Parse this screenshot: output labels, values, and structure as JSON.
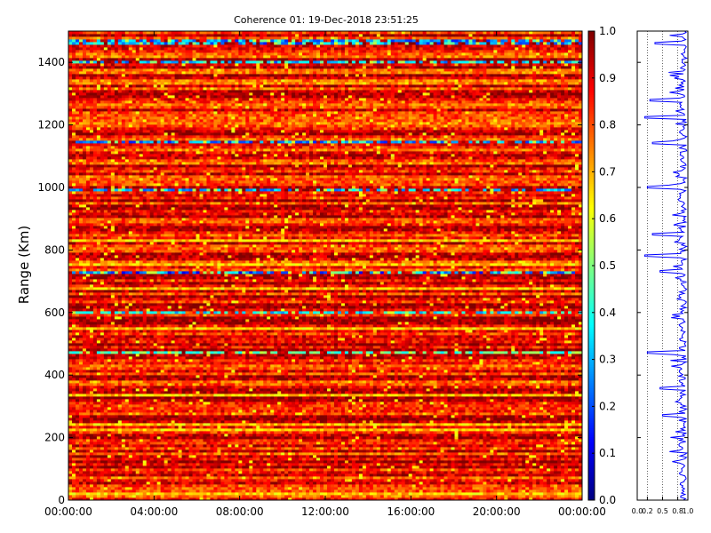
{
  "chart_data": [
    {
      "type": "heatmap",
      "title": "Coherence 01: 19-Dec-2018 23:51:25",
      "xlabel": "",
      "ylabel": "Range (Km)",
      "x_ticks": [
        "00:00:00",
        "04:00:00",
        "08:00:00",
        "12:00:00",
        "16:00:00",
        "20:00:00",
        "00:00:00"
      ],
      "y_ticks": [
        0,
        200,
        400,
        600,
        800,
        1000,
        1200,
        1400
      ],
      "ylim": [
        0,
        1500
      ],
      "colorbar": {
        "colormap": "jet",
        "range": [
          0.0,
          1.0
        ],
        "ticks": [
          "0.0",
          "0.1",
          "0.2",
          "0.3",
          "0.4",
          "0.5",
          "0.6",
          "0.7",
          "0.8",
          "0.9",
          "1.0"
        ]
      },
      "dominant_value_range": [
        0.75,
        0.98
      ],
      "low_coherence_bands_km": [
        {
          "range_km": 1465,
          "value": 0.15
        },
        {
          "range_km": 1400,
          "value": 0.2
        },
        {
          "range_km": 1145,
          "value": 0.15
        },
        {
          "range_km": 993,
          "value": 0.2
        },
        {
          "range_km": 727,
          "value": 0.1
        },
        {
          "range_km": 600,
          "value": 0.25
        },
        {
          "range_km": 475,
          "value": 0.35
        }
      ]
    },
    {
      "type": "line",
      "title": "",
      "xlim": [
        0.0,
        1.0
      ],
      "x_ticks": [
        "0.0",
        "0.2",
        "0.5",
        "0.8",
        "1.0"
      ],
      "ylim": [
        0,
        1500
      ],
      "grid": "dotted vertical",
      "series_color": "#0000ff",
      "dip_profile": [
        {
          "range_km": 1460,
          "value": 0.35
        },
        {
          "range_km": 1280,
          "value": 0.25
        },
        {
          "range_km": 1225,
          "value": 0.15
        },
        {
          "range_km": 1140,
          "value": 0.3
        },
        {
          "range_km": 1000,
          "value": 0.2
        },
        {
          "range_km": 850,
          "value": 0.3
        },
        {
          "range_km": 780,
          "value": 0.15
        },
        {
          "range_km": 730,
          "value": 0.45
        },
        {
          "range_km": 470,
          "value": 0.2
        },
        {
          "range_km": 360,
          "value": 0.45
        },
        {
          "range_km": 270,
          "value": 0.5
        }
      ]
    }
  ]
}
